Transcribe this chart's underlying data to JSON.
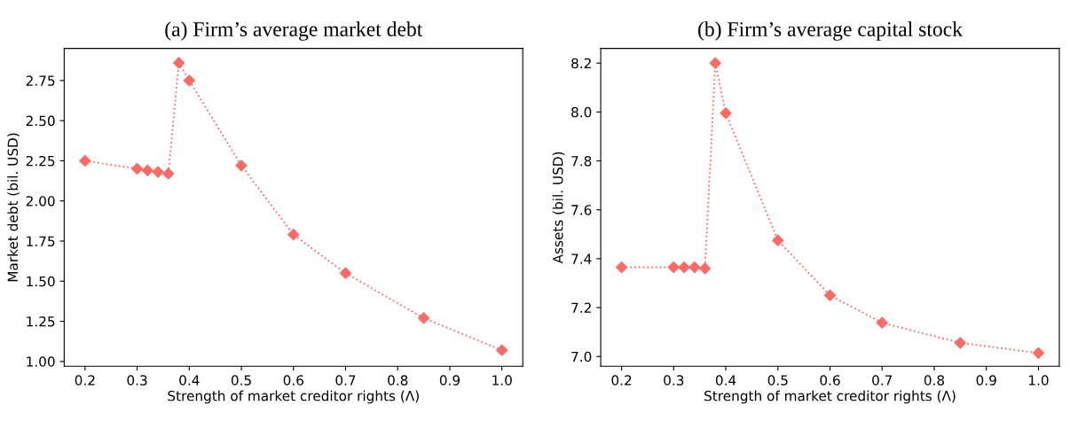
{
  "chart_data": [
    {
      "type": "line",
      "title": "(a) Firm’s average market debt",
      "xlabel": "Strength of market creditor rights (Λ)",
      "ylabel": "Market debt (bil. USD)",
      "marker": "diamond",
      "line_style": "dotted",
      "grid": false,
      "legend": false,
      "x": [
        0.2,
        0.3,
        0.32,
        0.34,
        0.36,
        0.38,
        0.4,
        0.5,
        0.6,
        0.7,
        0.85,
        1.0
      ],
      "series": [
        {
          "color": "#f96b66",
          "values": [
            2.25,
            2.2,
            2.19,
            2.18,
            2.17,
            2.86,
            2.75,
            2.22,
            1.79,
            1.55,
            1.27,
            1.07
          ]
        }
      ],
      "xlim": [
        0.16,
        1.04
      ],
      "xticks": [
        0.2,
        0.3,
        0.4,
        0.5,
        0.6,
        0.7,
        0.8,
        0.9,
        {
          "value": 1.0,
          "label": "1.0"
        }
      ],
      "ylim": [
        0.97,
        2.95
      ],
      "yticks": [
        {
          "value": 1.0,
          "label": "1.00"
        },
        1.25,
        {
          "value": 1.5,
          "label": "1.50"
        },
        1.75,
        {
          "value": 2.0,
          "label": "2.00"
        },
        2.25,
        {
          "value": 2.5,
          "label": "2.50"
        },
        2.75
      ]
    },
    {
      "type": "line",
      "title": "(b) Firm’s average capital stock",
      "xlabel": "Strength of market creditor rights (Λ)",
      "ylabel": "Assets (bil. USD)",
      "marker": "diamond",
      "line_style": "dotted",
      "grid": false,
      "legend": false,
      "x": [
        0.2,
        0.3,
        0.32,
        0.34,
        0.36,
        0.38,
        0.4,
        0.5,
        0.6,
        0.7,
        0.85,
        1.0
      ],
      "series": [
        {
          "color": "#f96b66",
          "values": [
            7.365,
            7.365,
            7.365,
            7.365,
            7.36,
            8.2,
            7.995,
            7.475,
            7.25,
            7.138,
            7.056,
            7.014
          ]
        }
      ],
      "xlim": [
        0.16,
        1.04
      ],
      "xticks": [
        0.2,
        0.3,
        0.4,
        0.5,
        0.6,
        0.7,
        0.8,
        0.9,
        {
          "value": 1.0,
          "label": "1.0"
        }
      ],
      "ylim": [
        6.96,
        8.26
      ],
      "yticks": [
        {
          "value": 7.0,
          "label": "7.0"
        },
        7.2,
        7.4,
        7.6,
        7.8,
        {
          "value": 8.0,
          "label": "8.0"
        },
        8.2
      ]
    }
  ]
}
